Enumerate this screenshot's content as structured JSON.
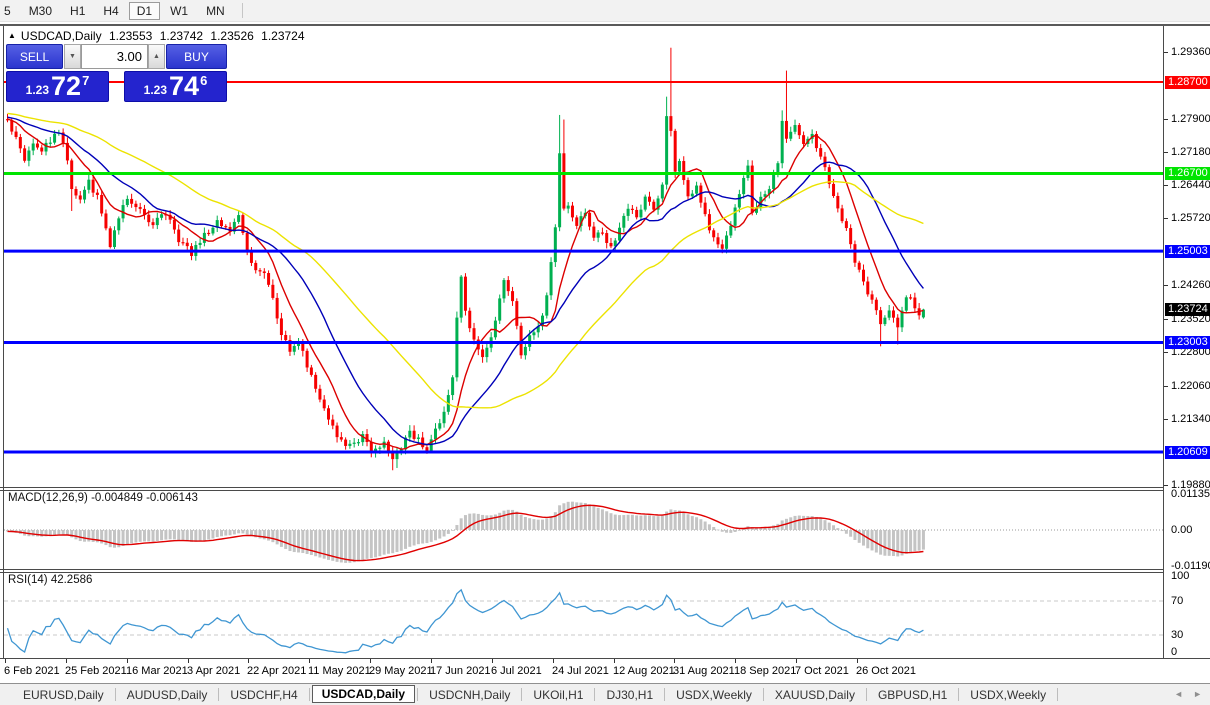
{
  "toolbar": {
    "items": [
      {
        "label": "5",
        "active": false
      },
      {
        "label": "M30",
        "active": false
      },
      {
        "label": "H1",
        "active": false
      },
      {
        "label": "H4",
        "active": false
      },
      {
        "label": "D1",
        "active": true
      },
      {
        "label": "W1",
        "active": false
      },
      {
        "label": "MN",
        "active": false
      }
    ]
  },
  "chart_header": {
    "collapse_icon": "▲",
    "title": "USDCAD,Daily",
    "open": "1.23553",
    "high": "1.23742",
    "low": "1.23526",
    "close": "1.23724"
  },
  "trade_widget": {
    "sell_label": "SELL",
    "buy_label": "BUY",
    "volume": "3.00",
    "volume_down_icon": "▼",
    "volume_up_icon": "▲",
    "sell_price_prefix": "1.23",
    "sell_price_big": "72",
    "sell_price_sup": "7",
    "buy_price_prefix": "1.23",
    "buy_price_big": "74",
    "buy_price_sup": "6"
  },
  "indicators": {
    "macd": {
      "label": "MACD(12,26,9) -0.004849 -0.006143",
      "axis": [
        "0.01135",
        "0.00",
        "-0.011904"
      ]
    },
    "rsi": {
      "label": "RSI(14) 42.2586",
      "axis": [
        "100",
        "70",
        "30",
        "0"
      ]
    }
  },
  "tabs": {
    "items": [
      {
        "label": "EURUSD,Daily",
        "active": false
      },
      {
        "label": "AUDUSD,Daily",
        "active": false
      },
      {
        "label": "USDCHF,H4",
        "active": false
      },
      {
        "label": "USDCAD,Daily",
        "active": true
      },
      {
        "label": "USDCNH,Daily",
        "active": false
      },
      {
        "label": "UKOil,H1",
        "active": false
      },
      {
        "label": "DJ30,H1",
        "active": false
      },
      {
        "label": "USDX,Weekly",
        "active": false
      },
      {
        "label": "XAUUSD,Daily",
        "active": false
      },
      {
        "label": "GBPUSD,H1",
        "active": false
      },
      {
        "label": "USDX,Weekly",
        "active": false
      }
    ],
    "scroll_left_icon": "◄",
    "scroll_right_icon": "►"
  },
  "chart_data": {
    "type": "candlestick",
    "symbol": "USDCAD",
    "timeframe": "Daily",
    "bull_color": "#00b050",
    "bear_color": "#f60000",
    "axis_top": 1.29925,
    "axis_bottom": 1.19844,
    "price_ticks": [
      "1.29360",
      "1.27900",
      "1.27180",
      "1.26440",
      "1.25720",
      "1.24260",
      "1.23520",
      "1.22800",
      "1.22060",
      "1.21340",
      "1.19880"
    ],
    "levels": [
      {
        "label": "1.28700",
        "value": 1.287,
        "color": "#ff0000",
        "width": 2
      },
      {
        "label": "1.26700",
        "value": 1.267,
        "color": "#00e400",
        "width": 3
      },
      {
        "label": "1.25003",
        "value": 1.25003,
        "color": "#0000ff",
        "width": 3
      },
      {
        "label": "1.23003",
        "value": 1.23003,
        "color": "#0000ff",
        "width": 3
      },
      {
        "label": "1.20609",
        "value": 1.20609,
        "color": "#0000ff",
        "width": 3
      }
    ],
    "current_price": {
      "label": "1.23724",
      "value": 1.23724,
      "badge_bg": "#000000"
    },
    "bars": 215,
    "padding": {
      "bars": 50,
      "from": 1.282,
      "to": 1.2788
    },
    "close_keyframes": [
      [
        0,
        1.2785
      ],
      [
        2,
        1.2748
      ],
      [
        4,
        1.27
      ],
      [
        6,
        1.273
      ],
      [
        8,
        1.2716
      ],
      [
        10,
        1.2744
      ],
      [
        12,
        1.2762
      ],
      [
        14,
        1.27
      ],
      [
        15,
        1.2635
      ],
      [
        17,
        1.2618
      ],
      [
        19,
        1.2652
      ],
      [
        21,
        1.2618
      ],
      [
        23,
        1.255
      ],
      [
        24,
        1.2515
      ],
      [
        26,
        1.2578
      ],
      [
        28,
        1.2618
      ],
      [
        31,
        1.259
      ],
      [
        34,
        1.2558
      ],
      [
        37,
        1.2585
      ],
      [
        40,
        1.2525
      ],
      [
        43,
        1.2495
      ],
      [
        46,
        1.2535
      ],
      [
        49,
        1.2562
      ],
      [
        52,
        1.2545
      ],
      [
        54,
        1.2582
      ],
      [
        56,
        1.25
      ],
      [
        58,
        1.2462
      ],
      [
        60,
        1.2455
      ],
      [
        62,
        1.24
      ],
      [
        64,
        1.232
      ],
      [
        66,
        1.2287
      ],
      [
        68,
        1.2302
      ],
      [
        70,
        1.2252
      ],
      [
        72,
        1.22
      ],
      [
        74,
        1.2162
      ],
      [
        76,
        1.2112
      ],
      [
        78,
        1.2086
      ],
      [
        80,
        1.2072
      ],
      [
        83,
        1.2095
      ],
      [
        85,
        1.2062
      ],
      [
        88,
        1.2078
      ],
      [
        90,
        1.2045
      ],
      [
        92,
        1.2072
      ],
      [
        94,
        1.2105
      ],
      [
        96,
        1.2086
      ],
      [
        98,
        1.2066
      ],
      [
        100,
        1.2115
      ],
      [
        102,
        1.2142
      ],
      [
        104,
        1.223
      ],
      [
        105,
        1.236
      ],
      [
        106,
        1.244
      ],
      [
        107,
        1.2375
      ],
      [
        109,
        1.23
      ],
      [
        111,
        1.2265
      ],
      [
        113,
        1.231
      ],
      [
        115,
        1.24
      ],
      [
        116,
        1.244
      ],
      [
        118,
        1.239
      ],
      [
        120,
        1.2275
      ],
      [
        122,
        1.231
      ],
      [
        124,
        1.2332
      ],
      [
        126,
        1.24
      ],
      [
        128,
        1.255
      ],
      [
        129,
        1.272
      ],
      [
        130,
        1.26
      ],
      [
        131,
        1.2605
      ],
      [
        133,
        1.2555
      ],
      [
        135,
        1.2585
      ],
      [
        137,
        1.2525
      ],
      [
        139,
        1.2545
      ],
      [
        141,
        1.2505
      ],
      [
        143,
        1.2555
      ],
      [
        145,
        1.2595
      ],
      [
        147,
        1.2575
      ],
      [
        149,
        1.262
      ],
      [
        151,
        1.259
      ],
      [
        153,
        1.265
      ],
      [
        154,
        1.28
      ],
      [
        155,
        1.2765
      ],
      [
        156,
        1.267
      ],
      [
        157,
        1.27
      ],
      [
        159,
        1.262
      ],
      [
        161,
        1.264
      ],
      [
        163,
        1.258
      ],
      [
        165,
        1.2525
      ],
      [
        167,
        1.2505
      ],
      [
        169,
        1.256
      ],
      [
        171,
        1.262
      ],
      [
        173,
        1.269
      ],
      [
        174,
        1.258
      ],
      [
        176,
        1.262
      ],
      [
        178,
        1.264
      ],
      [
        180,
        1.269
      ],
      [
        181,
        1.2785
      ],
      [
        182,
        1.2745
      ],
      [
        184,
        1.2775
      ],
      [
        186,
        1.2735
      ],
      [
        188,
        1.275
      ],
      [
        190,
        1.2705
      ],
      [
        192,
        1.265
      ],
      [
        194,
        1.259
      ],
      [
        196,
        1.2545
      ],
      [
        198,
        1.248
      ],
      [
        200,
        1.243
      ],
      [
        202,
        1.239
      ],
      [
        204,
        1.2345
      ],
      [
        206,
        1.2375
      ],
      [
        208,
        1.234
      ],
      [
        210,
        1.2405
      ],
      [
        212,
        1.238
      ],
      [
        213,
        1.2358
      ],
      [
        214,
        1.23724
      ]
    ],
    "overrides": {
      "15": {
        "l": 1.2588
      },
      "24": {
        "l": 1.2506
      },
      "90": {
        "l": 1.2021
      },
      "91": {
        "l": 1.2026
      },
      "105": {
        "h": 1.2368
      },
      "106": {
        "h": 1.2448
      },
      "107": {
        "h": 1.2452
      },
      "129": {
        "h": 1.2798
      },
      "130": {
        "h": 1.2788
      },
      "154": {
        "h": 1.2838
      },
      "155": {
        "h": 1.2945
      },
      "156": {
        "l": 1.266
      },
      "181": {
        "h": 1.2808
      },
      "182": {
        "h": 1.2895
      },
      "204": {
        "l": 1.2292
      },
      "208": {
        "l": 1.2296
      },
      "214": {
        "o": 1.23553,
        "h": 1.23742,
        "l": 1.23526,
        "c": 1.23724
      }
    },
    "moving_averages": [
      {
        "name": "fast",
        "period": 9,
        "color": "#dc0000"
      },
      {
        "name": "medium",
        "period": 21,
        "color": "#0000b8"
      },
      {
        "name": "slow",
        "period": 45,
        "color": "#ece300"
      }
    ],
    "macd": {
      "fast": 12,
      "slow": 26,
      "signal": 9,
      "axis_abs": 0.0119,
      "hist_color": "#c4c4c4",
      "line_color": "#e00000"
    },
    "rsi": {
      "period": 14,
      "upper": 70,
      "lower": 30,
      "color": "#3f96d2"
    },
    "time_labels": [
      "6 Feb 2021",
      "25 Feb 2021",
      "16 Mar 2021",
      "3 Apr 2021",
      "22 Apr 2021",
      "11 May 2021",
      "29 May 2021",
      "17 Jun 2021",
      "6 Jul 2021",
      "24 Jul 2021",
      "12 Aug 2021",
      "31 Aug 2021",
      "18 Sep 2021",
      "7 Oct 2021",
      "26 Oct 2021"
    ]
  }
}
